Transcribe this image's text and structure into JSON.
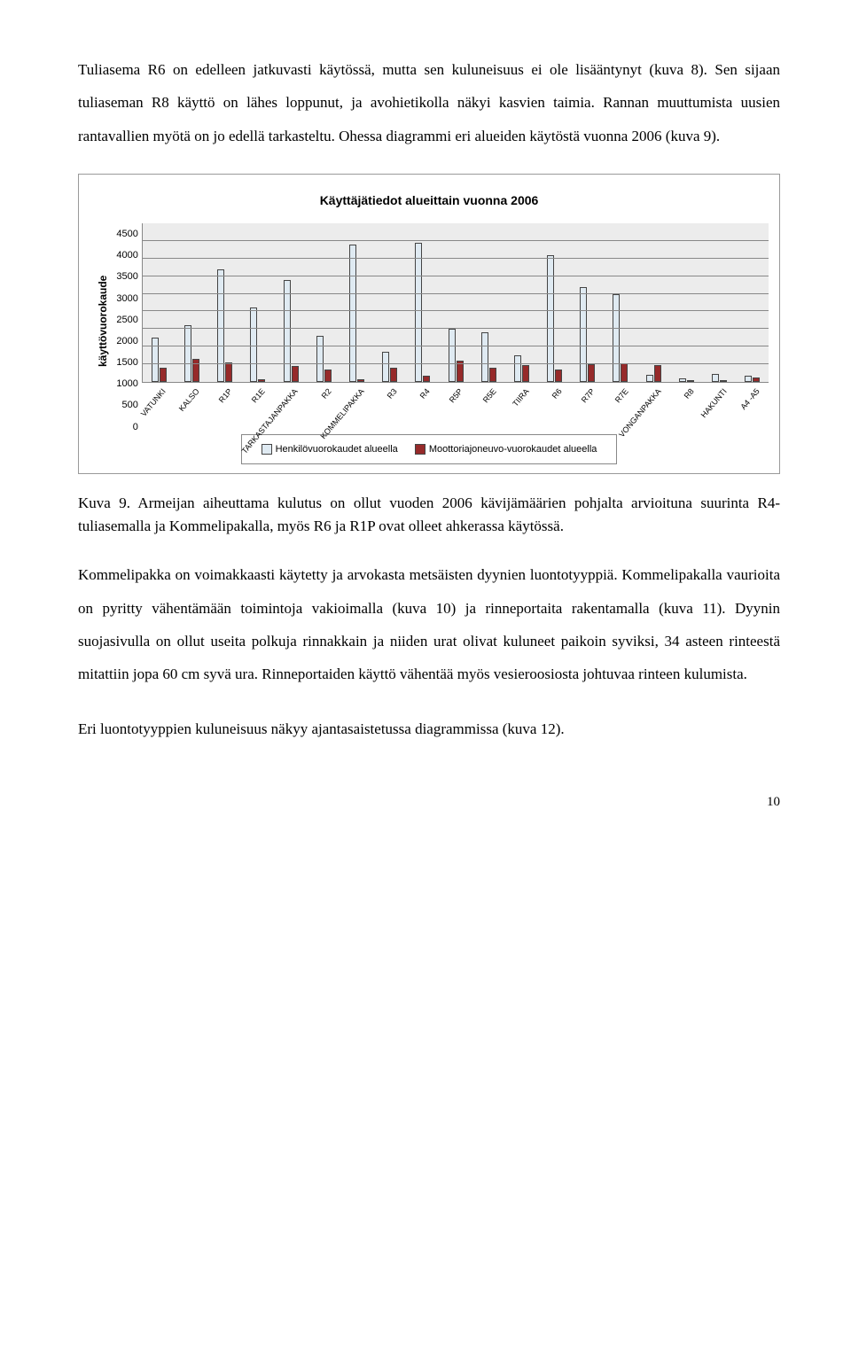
{
  "paragraphs": {
    "p1": "Tuliasema R6 on edelleen jatkuvasti käytössä, mutta sen kuluneisuus ei ole lisääntynyt (kuva 8). Sen sijaan tuliaseman R8 käyttö on lähes loppunut, ja avohietikolla näkyi kasvien taimia. Rannan muuttumista uusien rantavallien myötä on jo edellä tarkasteltu. Ohessa diagrammi eri alueiden käytöstä vuonna 2006 (kuva 9).",
    "caption": "Kuva 9. Armeijan aiheuttama kulutus on ollut vuoden 2006 kävijämäärien pohjalta arvioituna suurinta R4-tuliasemalla ja Kommelipakalla, myös R6 ja R1P ovat olleet ahkerassa käytössä.",
    "p3": "Kommelipakka on voimakkaasti käytetty ja arvokasta metsäisten dyynien luontotyyppiä. Kommelipakalla vaurioita on pyritty vähentämään toimintoja vakioimalla (kuva 10) ja rinneportaita rakentamalla (kuva 11). Dyynin suojasivulla on ollut useita polkuja rinnakkain ja niiden urat olivat kuluneet paikoin syviksi, 34 asteen rinteestä mitattiin jopa 60 cm syvä ura. Rinneportaiden käyttö vähentää myös vesieroosiosta johtuvaa rinteen kulumista.",
    "p4": "Eri luontotyyppien kuluneisuus näkyy ajantasaistetussa diagrammissa (kuva 12)."
  },
  "chart": {
    "title": "Käyttäjätiedot alueittain vuonna 2006",
    "ylabel": "käyttövuorokaude",
    "ylim": [
      0,
      4500
    ],
    "ytick_step": 500,
    "background_color": "#ececec",
    "grid_color": "#888888",
    "series_colors": {
      "a": "#dfeaf2",
      "b": "#962a2a"
    },
    "categories": [
      "VATUNKI",
      "KALSO",
      "R1P",
      "R1E",
      "TARKASTAJANPAKKA",
      "R2",
      "KOMMELIPAKKA",
      "R3",
      "R4",
      "R5P",
      "R5E",
      "TIIRA",
      "R6",
      "R7P",
      "R7E",
      "VONGANPAKKA",
      "R8",
      "HAKUNTI",
      "A4 -A5"
    ],
    "values_a": [
      1250,
      1600,
      3200,
      2100,
      2900,
      1300,
      3900,
      850,
      3950,
      1500,
      1400,
      750,
      3600,
      2700,
      2500,
      200,
      100,
      230,
      180
    ],
    "values_b": [
      400,
      650,
      550,
      80,
      450,
      350,
      70,
      400,
      180,
      600,
      400,
      480,
      350,
      500,
      530,
      480,
      60,
      60,
      120
    ],
    "legend": {
      "a": "Henkilövuorokaudet alueella",
      "b": "Moottoriajoneuvo-vuorokaudet alueella"
    }
  },
  "page_number": "10"
}
